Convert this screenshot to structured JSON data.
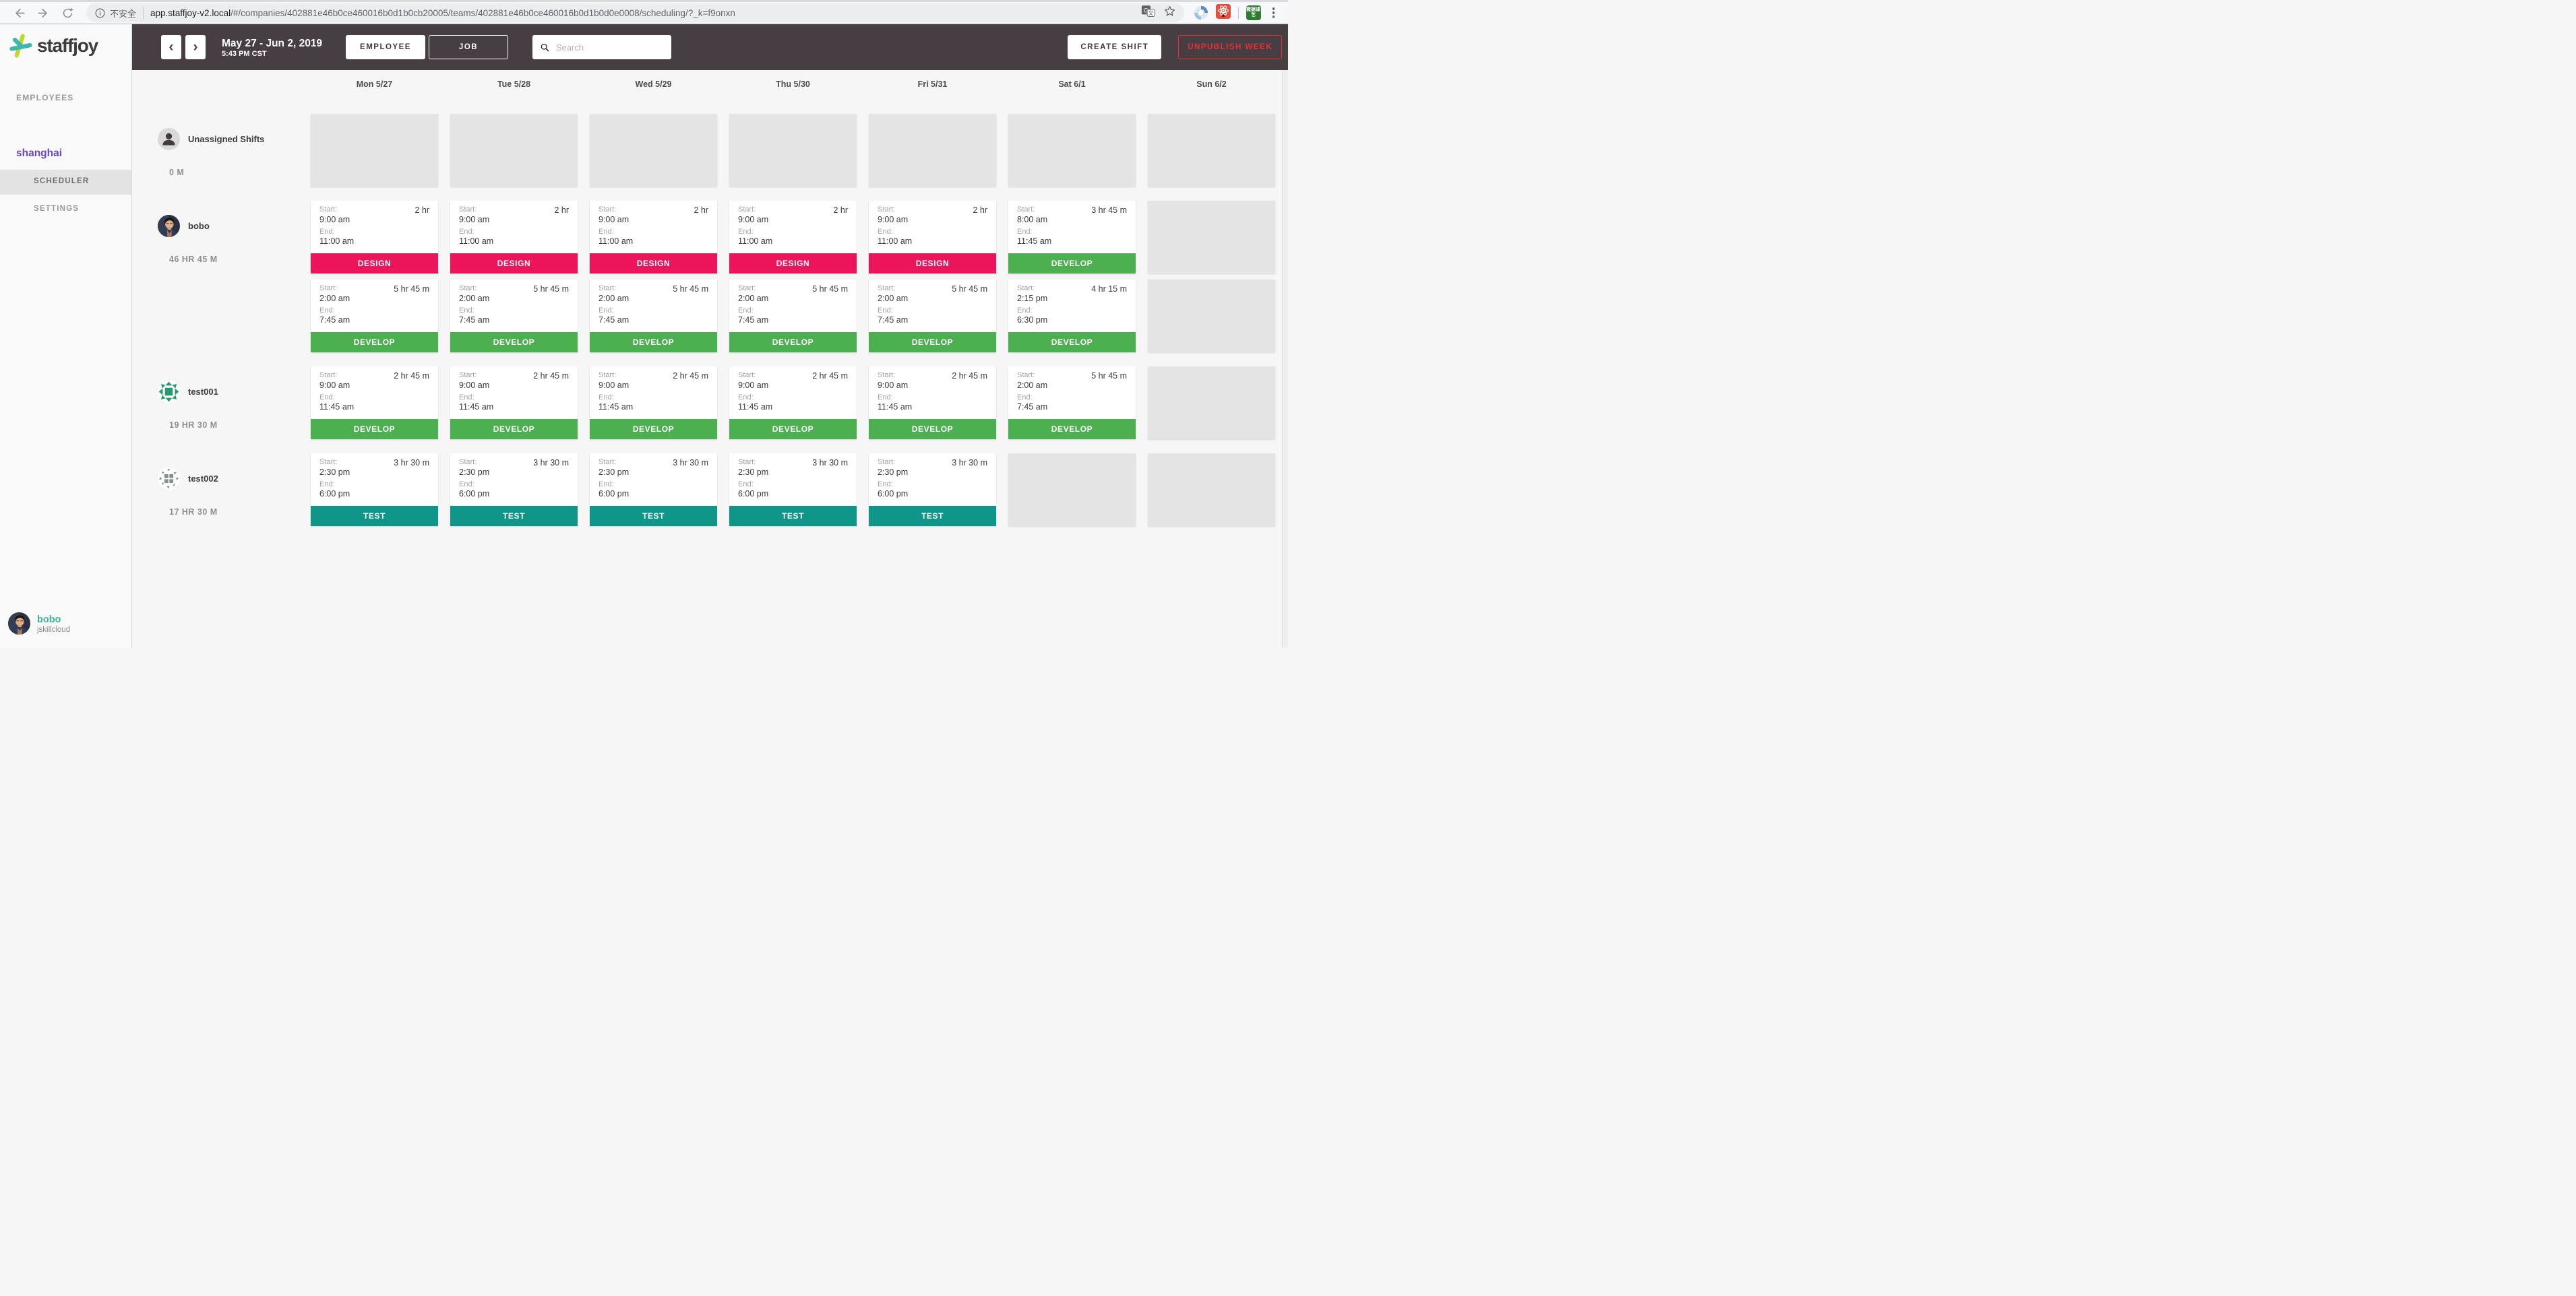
{
  "browser": {
    "secure_label": "不安全",
    "url_host": "app.staffjoy-v2.local",
    "url_path": "/#/companies/402881e46b0ce460016b0d1b0cb20005/teams/402881e46b0ce460016b0d1b0d0e0008/scheduling/?_k=f9onxn",
    "extension_badge": "微掘课艺"
  },
  "sidebar": {
    "logo_text": "staffjoy",
    "nav_employees": "EMPLOYEES",
    "team_name": "shanghai",
    "nav_scheduler": "SCHEDULER",
    "nav_settings": "SETTINGS",
    "user": {
      "name": "bobo",
      "company": "jskillcloud"
    }
  },
  "toolbar": {
    "date_range": "May 27 - Jun 2, 2019",
    "time": "5:43 PM CST",
    "employee_toggle": "EMPLOYEE",
    "job_toggle": "JOB",
    "search_placeholder": "Search",
    "create_shift": "CREATE SHIFT",
    "unpublish_week": "UNPUBLISH WEEK"
  },
  "labels": {
    "start": "Start:",
    "end": "End:"
  },
  "jobs": {
    "DESIGN": "#ec155b",
    "DEVELOP": "#4caf50",
    "TEST": "#0f9688"
  },
  "calendar": {
    "days": [
      "Mon 5/27",
      "Tue 5/28",
      "Wed 5/29",
      "Thu 5/30",
      "Fri 5/31",
      "Sat 6/1",
      "Sun 6/2"
    ],
    "rows": [
      {
        "name": "Unassigned Shifts",
        "hours": "0 M",
        "avatar": "unassigned",
        "lines": [
          [
            null,
            null,
            null,
            null,
            null,
            null,
            null
          ]
        ]
      },
      {
        "name": "bobo",
        "hours": "46 HR 45 M",
        "avatar": "bobo",
        "lines": [
          [
            {
              "job": "DESIGN",
              "start": "9:00 am",
              "end": "11:00 am",
              "dur": "2 hr"
            },
            {
              "job": "DESIGN",
              "start": "9:00 am",
              "end": "11:00 am",
              "dur": "2 hr"
            },
            {
              "job": "DESIGN",
              "start": "9:00 am",
              "end": "11:00 am",
              "dur": "2 hr"
            },
            {
              "job": "DESIGN",
              "start": "9:00 am",
              "end": "11:00 am",
              "dur": "2 hr"
            },
            {
              "job": "DESIGN",
              "start": "9:00 am",
              "end": "11:00 am",
              "dur": "2 hr"
            },
            {
              "job": "DEVELOP",
              "start": "8:00 am",
              "end": "11:45 am",
              "dur": "3 hr 45 m"
            },
            null
          ],
          [
            {
              "job": "DEVELOP",
              "start": "2:00 am",
              "end": "7:45 am",
              "dur": "5 hr 45 m"
            },
            {
              "job": "DEVELOP",
              "start": "2:00 am",
              "end": "7:45 am",
              "dur": "5 hr 45 m"
            },
            {
              "job": "DEVELOP",
              "start": "2:00 am",
              "end": "7:45 am",
              "dur": "5 hr 45 m"
            },
            {
              "job": "DEVELOP",
              "start": "2:00 am",
              "end": "7:45 am",
              "dur": "5 hr 45 m"
            },
            {
              "job": "DEVELOP",
              "start": "2:00 am",
              "end": "7:45 am",
              "dur": "5 hr 45 m"
            },
            {
              "job": "DEVELOP",
              "start": "2:15 pm",
              "end": "6:30 pm",
              "dur": "4 hr 15 m"
            },
            null
          ]
        ]
      },
      {
        "name": "test001",
        "hours": "19 HR 30 M",
        "avatar": "test001",
        "lines": [
          [
            {
              "job": "DEVELOP",
              "start": "9:00 am",
              "end": "11:45 am",
              "dur": "2 hr 45 m"
            },
            {
              "job": "DEVELOP",
              "start": "9:00 am",
              "end": "11:45 am",
              "dur": "2 hr 45 m"
            },
            {
              "job": "DEVELOP",
              "start": "9:00 am",
              "end": "11:45 am",
              "dur": "2 hr 45 m"
            },
            {
              "job": "DEVELOP",
              "start": "9:00 am",
              "end": "11:45 am",
              "dur": "2 hr 45 m"
            },
            {
              "job": "DEVELOP",
              "start": "9:00 am",
              "end": "11:45 am",
              "dur": "2 hr 45 m"
            },
            {
              "job": "DEVELOP",
              "start": "2:00 am",
              "end": "7:45 am",
              "dur": "5 hr 45 m"
            },
            null
          ]
        ]
      },
      {
        "name": "test002",
        "hours": "17 HR 30 M",
        "avatar": "test002",
        "lines": [
          [
            {
              "job": "TEST",
              "start": "2:30 pm",
              "end": "6:00 pm",
              "dur": "3 hr 30 m"
            },
            {
              "job": "TEST",
              "start": "2:30 pm",
              "end": "6:00 pm",
              "dur": "3 hr 30 m"
            },
            {
              "job": "TEST",
              "start": "2:30 pm",
              "end": "6:00 pm",
              "dur": "3 hr 30 m"
            },
            {
              "job": "TEST",
              "start": "2:30 pm",
              "end": "6:00 pm",
              "dur": "3 hr 30 m"
            },
            {
              "job": "TEST",
              "start": "2:30 pm",
              "end": "6:00 pm",
              "dur": "3 hr 30 m"
            },
            null,
            null
          ]
        ]
      }
    ]
  }
}
